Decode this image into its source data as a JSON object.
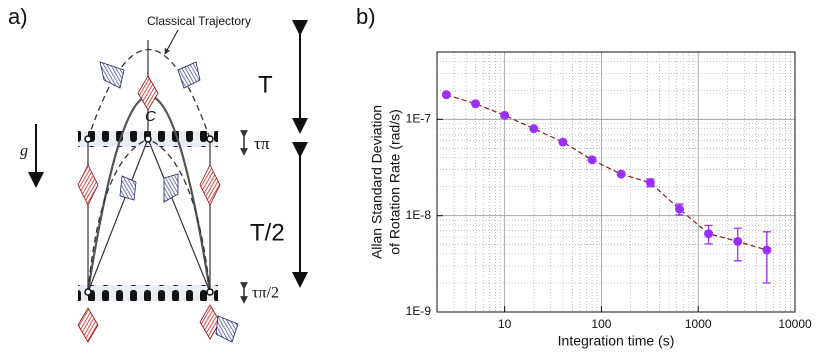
{
  "diagram": {
    "panel_label": "a)",
    "trajectory_label": "Classical Trajectory",
    "point_label": "C",
    "gravity_label": "g",
    "time_top": "T",
    "time_bottom": "T/2",
    "pulse_pi": "τπ",
    "pulse_half_pi": "τπ/2"
  },
  "chart_data": {
    "type": "scatter",
    "panel_label": "b)",
    "xlabel": "Integration time (s)",
    "ylabel": [
      "Allan Standard Deviation",
      "of Rotation Rate (rad/s)"
    ],
    "x": [
      2.5,
      5,
      10,
      20,
      40,
      80,
      160,
      320,
      640,
      1280,
      2560,
      5120
    ],
    "values": [
      1.8e-07,
      1.45e-07,
      1.1e-07,
      8e-08,
      5.8e-08,
      3.8e-08,
      2.7e-08,
      2.2e-08,
      1.17e-08,
      6.5e-09,
      5.4e-09,
      4.4e-09
    ],
    "errors": [
      0,
      0,
      0,
      0,
      0,
      0,
      0,
      2e-09,
      1.5e-09,
      1.4e-09,
      2e-09,
      2.4e-09
    ],
    "color": "#9b30ff",
    "line_color": "#8b1a1a",
    "xlim": [
      2,
      10000
    ],
    "ylim": [
      1e-09,
      5e-07
    ],
    "xticks": [
      10,
      100,
      1000,
      10000
    ],
    "yticks": [
      {
        "value": 1e-09,
        "label": "1E-9"
      },
      {
        "value": 1e-08,
        "label": "1E-8"
      },
      {
        "value": 1e-07,
        "label": "1E-7"
      }
    ],
    "xscale": "log",
    "yscale": "log",
    "grid": true
  }
}
